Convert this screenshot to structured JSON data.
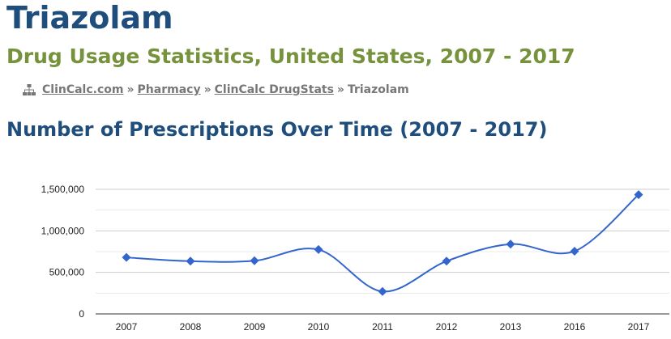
{
  "page": {
    "title": "Triazolam",
    "subtitle": "Drug Usage Statistics, United States, 2007 - 2017",
    "section_title": "Number of Prescriptions Over Time (2007 - 2017)"
  },
  "breadcrumb": {
    "icon": "sitemap-icon",
    "items": [
      {
        "label": "ClinCalc.com",
        "link": true
      },
      {
        "label": "Pharmacy",
        "link": true
      },
      {
        "label": "ClinCalc DrugStats",
        "link": true
      },
      {
        "label": "Triazolam",
        "link": false
      }
    ],
    "separator": "»"
  },
  "colors": {
    "title": "#1f4e7d",
    "subtitle": "#76923c",
    "series": "#3366cc",
    "grid": "#cccccc",
    "axis": "#333333"
  },
  "chart_data": {
    "type": "line",
    "title": "",
    "xlabel": "",
    "ylabel": "",
    "categories": [
      "2007",
      "2008",
      "2009",
      "2010",
      "2011",
      "2012",
      "2013",
      "2016",
      "2017"
    ],
    "series": [
      {
        "values": [
          680000,
          635000,
          640000,
          775000,
          270000,
          635000,
          840000,
          755000,
          1435000
        ]
      }
    ],
    "ylim": [
      0,
      1500000
    ],
    "yticks": [
      0,
      500000,
      1000000,
      1500000
    ],
    "ytick_labels": [
      "0",
      "500,000",
      "1,000,000",
      "1,500,000"
    ],
    "smooth": true,
    "marker": "diamond",
    "grid": true,
    "legend": "none"
  }
}
